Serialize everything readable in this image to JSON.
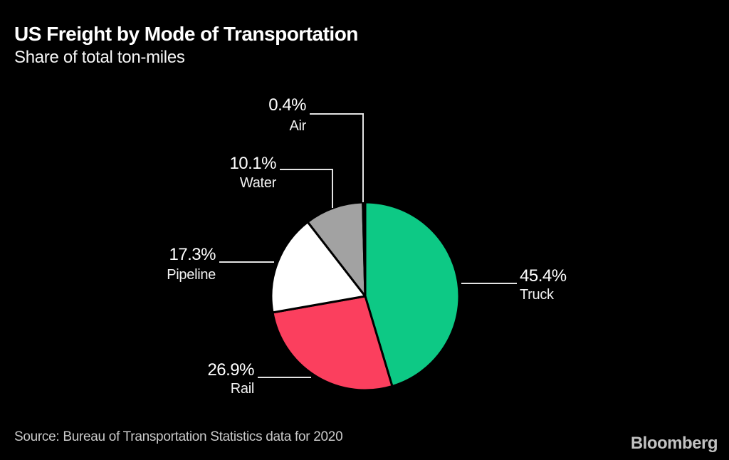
{
  "header": {
    "title": "US Freight by Mode of Transportation",
    "subtitle": "Share of total ton-miles"
  },
  "footer": {
    "source": "Source: Bureau of Transportation Statistics data for 2020",
    "brand": "Bloomberg"
  },
  "chart_data": {
    "type": "pie",
    "title": "US Freight by Mode of Transportation",
    "subtitle": "Share of total ton-miles",
    "unit": "%",
    "categories": [
      "Truck",
      "Rail",
      "Pipeline",
      "Water",
      "Air"
    ],
    "values": [
      45.4,
      26.9,
      17.3,
      10.1,
      0.4
    ],
    "labels": [
      "45.4%",
      "26.9%",
      "17.3%",
      "10.1%",
      "0.4%"
    ],
    "colors": {
      "Truck": "#0dc985",
      "Rail": "#fb3f5e",
      "Pipeline": "#ffffff",
      "Water": "#a2a2a2",
      "Air": "#111111"
    },
    "start_angle_deg": 0,
    "direction": "clockwise",
    "slice_border_color": "#000000",
    "background": "#000000",
    "legend": "callout-labels",
    "source": "Source: Bureau of Transportation Statistics data for 2020",
    "brand": "Bloomberg"
  }
}
